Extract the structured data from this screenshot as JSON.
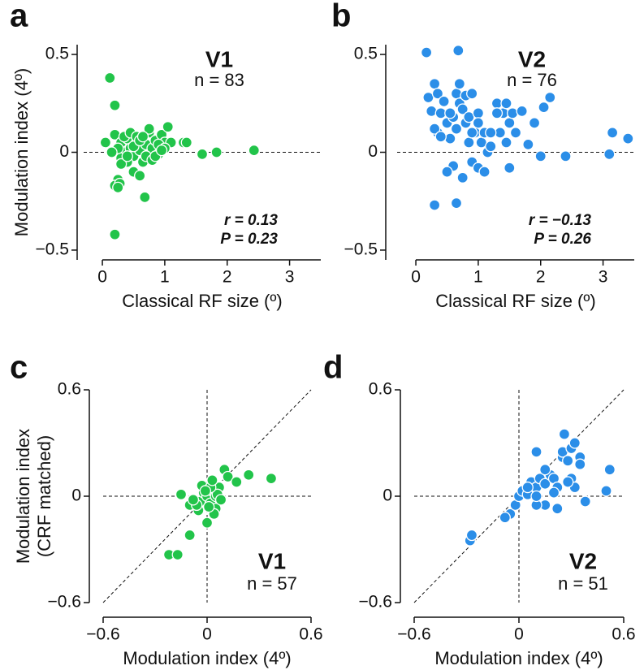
{
  "chart_data": [
    {
      "type": "scatter",
      "panel_label": "a",
      "title": "V1",
      "subtitle": "n = 83",
      "annotations": [
        "r =  0.13",
        "P =  0.23"
      ],
      "xlabel": "Classical RF size (º)",
      "ylabel": "Modulation index (4º)",
      "color": "#22c44a",
      "xlim": [
        -0.3,
        3.5
      ],
      "ylim": [
        -0.55,
        0.55
      ],
      "xticks": [
        0,
        1,
        2,
        3
      ],
      "yticks": [
        {
          "value": -0.5,
          "label": "−0.5"
        },
        0,
        0.5
      ],
      "zero_line": true,
      "diagonal": false,
      "x": [
        0.12,
        0.2,
        0.05,
        0.2,
        0.25,
        0.2,
        0.28,
        0.25,
        0.2,
        0.3,
        0.35,
        0.3,
        0.4,
        0.45,
        0.5,
        0.55,
        0.6,
        0.65,
        0.7,
        0.75,
        0.8,
        0.85,
        0.9,
        0.95,
        1.0,
        1.05,
        0.5,
        0.6,
        0.68,
        0.4,
        0.35,
        0.45,
        1.1,
        1.3,
        1.35,
        1.6,
        1.83,
        2.43,
        0.55,
        0.7,
        0.8,
        0.3,
        0.4,
        0.5,
        0.6,
        0.9,
        0.25,
        0.75,
        1.0,
        0.65,
        0.85,
        0.15,
        0.95
      ],
      "y": [
        0.38,
        0.24,
        0.05,
        -0.42,
        -0.14,
        -0.17,
        -0.16,
        -0.18,
        0.09,
        0.05,
        0.0,
        -0.03,
        0.07,
        0.02,
        -0.02,
        0.05,
        0.01,
        -0.05,
        0.04,
        0.1,
        0.02,
        0.06,
        -0.01,
        0.09,
        0.05,
        0.13,
        -0.1,
        -0.12,
        -0.23,
        -0.05,
        0.08,
        0.1,
        0.05,
        0.05,
        0.05,
        -0.01,
        0.0,
        0.01,
        0.08,
        -0.02,
        -0.04,
        -0.06,
        -0.02,
        0.03,
        0.06,
        0.04,
        0.02,
        0.12,
        0.02,
        0.08,
        -0.02,
        0.0,
        0.01
      ]
    },
    {
      "type": "scatter",
      "panel_label": "b",
      "title": "V2",
      "subtitle": "n = 76",
      "annotations": [
        "r = −0.13",
        "P =  0.26"
      ],
      "xlabel": "Classical RF size (º)",
      "color": "#2b8ee8",
      "xlim": [
        -0.3,
        3.5
      ],
      "ylim": [
        -0.55,
        0.55
      ],
      "xticks": [
        0,
        1,
        2,
        3
      ],
      "yticks": [
        {
          "value": -0.5,
          "label": "−0.5"
        },
        0,
        0.5
      ],
      "zero_line": true,
      "diagonal": false,
      "x": [
        0.17,
        0.68,
        0.2,
        0.25,
        0.3,
        0.35,
        0.45,
        0.5,
        0.35,
        0.4,
        0.3,
        0.55,
        0.6,
        0.65,
        0.7,
        0.7,
        0.75,
        0.8,
        0.8,
        0.85,
        0.9,
        0.95,
        1.0,
        1.05,
        1.1,
        1.15,
        1.2,
        1.3,
        1.35,
        1.4,
        1.45,
        1.5,
        1.55,
        1.6,
        1.7,
        1.8,
        1.9,
        2.0,
        2.05,
        2.15,
        2.4,
        3.1,
        3.15,
        3.4,
        0.3,
        0.65,
        0.6,
        0.5,
        0.75,
        0.9,
        1.0,
        1.1,
        1.2,
        1.45,
        0.4,
        0.65,
        0.85,
        0.55,
        1.3,
        1.5,
        1.0,
        0.9
      ],
      "y": [
        0.51,
        0.52,
        0.28,
        0.21,
        0.35,
        0.3,
        0.26,
        0.15,
        0.1,
        0.2,
        0.12,
        0.07,
        0.18,
        0.3,
        0.35,
        0.25,
        0.22,
        0.15,
        0.29,
        0.18,
        0.3,
        0.1,
        0.2,
        0.05,
        0.1,
        0.0,
        0.03,
        0.25,
        0.1,
        0.2,
        0.25,
        0.15,
        0.2,
        0.1,
        0.21,
        0.04,
        0.15,
        -0.02,
        0.23,
        0.28,
        -0.02,
        -0.01,
        0.1,
        0.07,
        -0.27,
        -0.26,
        -0.07,
        -0.1,
        -0.13,
        -0.05,
        -0.08,
        -0.1,
        0.1,
        0.05,
        0.08,
        0.12,
        0.05,
        0.2,
        0.2,
        -0.08,
        0.15,
        0.1
      ]
    },
    {
      "type": "scatter",
      "panel_label": "c",
      "title": "V1",
      "subtitle": "n = 57",
      "xlabel": "Modulation index (4º)",
      "ylabel": [
        "Modulation index",
        "(CRF matched)"
      ],
      "color": "#22c44a",
      "xlim": [
        -0.6,
        0.6
      ],
      "ylim": [
        -0.6,
        0.6
      ],
      "xticks": [
        {
          "value": -0.6,
          "label": "−0.6"
        },
        0,
        0.6
      ],
      "yticks": [
        {
          "value": -0.6,
          "label": "−0.6"
        },
        0,
        0.6
      ],
      "zero_line": true,
      "diagonal": true,
      "x": [
        -0.22,
        -0.17,
        -0.15,
        -0.1,
        -0.1,
        -0.05,
        -0.04,
        -0.02,
        0.0,
        0.02,
        0.03,
        0.05,
        0.05,
        0.07,
        0.1,
        0.12,
        0.17,
        0.24,
        0.37,
        0.0,
        0.06,
        -0.03,
        0.02,
        0.04,
        -0.06,
        0.01,
        -0.01,
        0.08,
        0.03,
        -0.08
      ],
      "y": [
        -0.33,
        -0.33,
        0.01,
        -0.22,
        -0.05,
        -0.08,
        -0.03,
        0.02,
        0.0,
        -0.04,
        0.03,
        0.0,
        -0.07,
        0.05,
        0.15,
        0.11,
        0.08,
        0.12,
        0.1,
        -0.15,
        0.01,
        0.06,
        0.05,
        -0.1,
        -0.05,
        -0.06,
        0.03,
        -0.02,
        0.09,
        -0.02
      ]
    },
    {
      "type": "scatter",
      "panel_label": "d",
      "title": "V2",
      "subtitle": "n = 51",
      "xlabel": "Modulation index (4º)",
      "color": "#2b8ee8",
      "xlim": [
        -0.6,
        0.6
      ],
      "ylim": [
        -0.6,
        0.6
      ],
      "xticks": [
        {
          "value": -0.6,
          "label": "−0.6"
        },
        0,
        0.6
      ],
      "yticks": [
        {
          "value": -0.6,
          "label": "−0.6"
        },
        0,
        0.6
      ],
      "zero_line": true,
      "diagonal": true,
      "x": [
        -0.28,
        -0.27,
        -0.05,
        -0.02,
        0.0,
        0.02,
        0.05,
        0.07,
        0.1,
        0.1,
        0.12,
        0.15,
        0.15,
        0.18,
        0.2,
        0.22,
        0.22,
        0.25,
        0.25,
        0.26,
        0.28,
        0.3,
        0.3,
        0.32,
        0.32,
        0.35,
        0.35,
        0.38,
        0.5,
        0.52,
        0.1,
        0.05,
        -0.08,
        0.2,
        0.28,
        0.15,
        0.1
      ],
      "y": [
        -0.25,
        -0.22,
        -0.1,
        -0.05,
        0.0,
        0.03,
        0.01,
        0.08,
        0.05,
        0.25,
        0.1,
        0.07,
        -0.05,
        0.12,
        0.1,
        -0.07,
        0.05,
        0.22,
        0.25,
        0.35,
        0.2,
        0.27,
        0.1,
        0.3,
        0.05,
        0.22,
        0.18,
        -0.03,
        0.03,
        0.15,
        -0.05,
        0.05,
        -0.12,
        0.02,
        0.08,
        0.15,
        0.0
      ]
    }
  ]
}
